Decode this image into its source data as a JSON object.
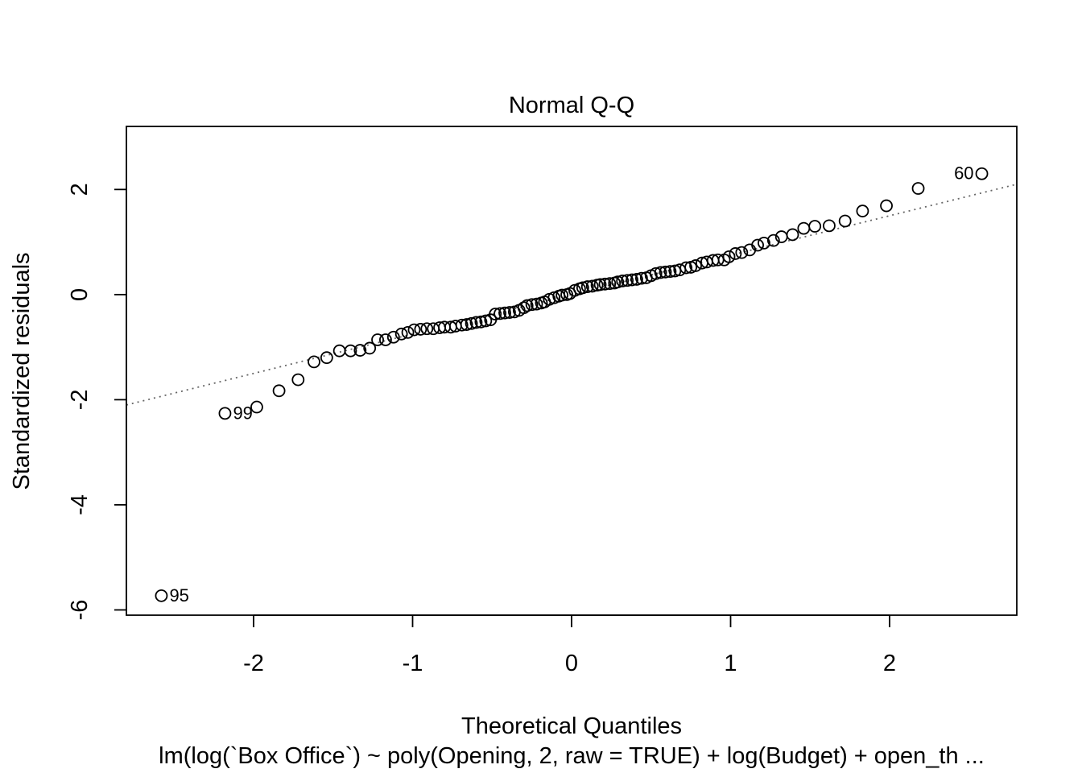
{
  "chart_data": {
    "type": "scatter",
    "title": "Normal Q-Q",
    "xlabel": "Theoretical Quantiles",
    "ylabel": "Standardized residuals",
    "subtitle": "lm(log(`Box Office`) ~ poly(Opening, 2, raw = TRUE) + log(Budget) + open_th ...",
    "xlim": [
      -2.8,
      2.8
    ],
    "ylim": [
      -6.1,
      3.2
    ],
    "xticks": [
      -2,
      -1,
      0,
      1,
      2
    ],
    "yticks": [
      -6,
      -4,
      -2,
      0,
      2
    ],
    "grid": false,
    "legend": "none",
    "reference_line": {
      "intercept": 0.0,
      "slope": 0.75,
      "style": "dotted",
      "color": "#666666"
    },
    "series": [
      {
        "marker": "open-circle",
        "points": [
          [
            -2.58,
            -5.73
          ],
          [
            -2.18,
            -2.26
          ],
          [
            -1.98,
            -2.14
          ],
          [
            -1.84,
            -1.83
          ],
          [
            -1.72,
            -1.62
          ],
          [
            -1.62,
            -1.28
          ],
          [
            -1.54,
            -1.2
          ],
          [
            -1.46,
            -1.07
          ],
          [
            -1.39,
            -1.07
          ],
          [
            -1.33,
            -1.06
          ],
          [
            -1.27,
            -1.02
          ],
          [
            -1.22,
            -0.86
          ],
          [
            -1.17,
            -0.86
          ],
          [
            -1.12,
            -0.81
          ],
          [
            -1.07,
            -0.75
          ],
          [
            -1.03,
            -0.72
          ],
          [
            -0.99,
            -0.67
          ],
          [
            -0.95,
            -0.66
          ],
          [
            -0.91,
            -0.65
          ],
          [
            -0.87,
            -0.65
          ],
          [
            -0.83,
            -0.63
          ],
          [
            -0.8,
            -0.62
          ],
          [
            -0.76,
            -0.62
          ],
          [
            -0.73,
            -0.6
          ],
          [
            -0.69,
            -0.58
          ],
          [
            -0.66,
            -0.57
          ],
          [
            -0.63,
            -0.55
          ],
          [
            -0.6,
            -0.53
          ],
          [
            -0.57,
            -0.52
          ],
          [
            -0.54,
            -0.5
          ],
          [
            -0.51,
            -0.48
          ],
          [
            -0.48,
            -0.37
          ],
          [
            -0.45,
            -0.36
          ],
          [
            -0.42,
            -0.35
          ],
          [
            -0.39,
            -0.34
          ],
          [
            -0.36,
            -0.33
          ],
          [
            -0.33,
            -0.3
          ],
          [
            -0.3,
            -0.25
          ],
          [
            -0.28,
            -0.21
          ],
          [
            -0.25,
            -0.19
          ],
          [
            -0.22,
            -0.18
          ],
          [
            -0.19,
            -0.16
          ],
          [
            -0.17,
            -0.14
          ],
          [
            -0.14,
            -0.09
          ],
          [
            -0.11,
            -0.06
          ],
          [
            -0.08,
            -0.03
          ],
          [
            -0.06,
            -0.01
          ],
          [
            -0.03,
            0.0
          ],
          [
            -0.01,
            0.02
          ],
          [
            0.02,
            0.08
          ],
          [
            0.05,
            0.11
          ],
          [
            0.07,
            0.13
          ],
          [
            0.1,
            0.15
          ],
          [
            0.13,
            0.16
          ],
          [
            0.16,
            0.18
          ],
          [
            0.18,
            0.19
          ],
          [
            0.21,
            0.2
          ],
          [
            0.24,
            0.21
          ],
          [
            0.27,
            0.22
          ],
          [
            0.29,
            0.24
          ],
          [
            0.32,
            0.26
          ],
          [
            0.35,
            0.27
          ],
          [
            0.38,
            0.28
          ],
          [
            0.41,
            0.29
          ],
          [
            0.44,
            0.31
          ],
          [
            0.47,
            0.32
          ],
          [
            0.5,
            0.36
          ],
          [
            0.53,
            0.4
          ],
          [
            0.56,
            0.42
          ],
          [
            0.59,
            0.43
          ],
          [
            0.62,
            0.44
          ],
          [
            0.65,
            0.45
          ],
          [
            0.68,
            0.47
          ],
          [
            0.72,
            0.51
          ],
          [
            0.75,
            0.52
          ],
          [
            0.78,
            0.55
          ],
          [
            0.82,
            0.6
          ],
          [
            0.85,
            0.62
          ],
          [
            0.89,
            0.65
          ],
          [
            0.92,
            0.66
          ],
          [
            0.96,
            0.66
          ],
          [
            0.99,
            0.72
          ],
          [
            1.03,
            0.78
          ],
          [
            1.07,
            0.8
          ],
          [
            1.12,
            0.85
          ],
          [
            1.17,
            0.94
          ],
          [
            1.21,
            0.98
          ],
          [
            1.27,
            1.03
          ],
          [
            1.32,
            1.1
          ],
          [
            1.39,
            1.14
          ],
          [
            1.46,
            1.26
          ],
          [
            1.53,
            1.3
          ],
          [
            1.62,
            1.31
          ],
          [
            1.72,
            1.4
          ],
          [
            1.83,
            1.59
          ],
          [
            1.98,
            1.69
          ],
          [
            2.18,
            2.02
          ],
          [
            2.58,
            2.3
          ]
        ]
      }
    ],
    "annotations": [
      {
        "text": "95",
        "x": -2.58,
        "y": -5.73,
        "side": "right"
      },
      {
        "text": "99",
        "x": -2.18,
        "y": -2.26,
        "side": "right"
      },
      {
        "text": "60",
        "x": 2.58,
        "y": 2.3,
        "side": "left"
      }
    ]
  }
}
